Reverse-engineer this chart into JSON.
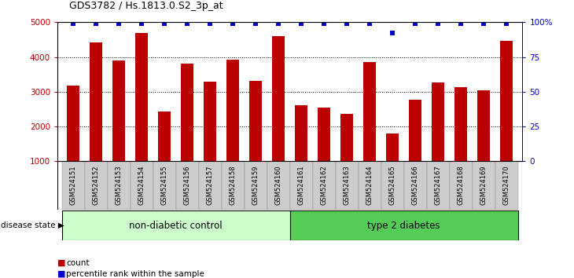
{
  "title": "GDS3782 / Hs.1813.0.S2_3p_at",
  "samples": [
    "GSM524151",
    "GSM524152",
    "GSM524153",
    "GSM524154",
    "GSM524155",
    "GSM524156",
    "GSM524157",
    "GSM524158",
    "GSM524159",
    "GSM524160",
    "GSM524161",
    "GSM524162",
    "GSM524163",
    "GSM524164",
    "GSM524165",
    "GSM524166",
    "GSM524167",
    "GSM524168",
    "GSM524169",
    "GSM524170"
  ],
  "counts": [
    3180,
    4430,
    3890,
    4700,
    2430,
    3820,
    3280,
    3930,
    3310,
    4590,
    2610,
    2540,
    2370,
    3860,
    1800,
    2780,
    3260,
    3130,
    3040,
    4470
  ],
  "percentile": [
    99,
    99,
    99,
    99,
    99,
    99,
    99,
    99,
    99,
    99,
    99,
    99,
    99,
    99,
    92,
    99,
    99,
    99,
    99,
    99
  ],
  "group1_label": "non-diabetic control",
  "group2_label": "type 2 diabetes",
  "group1_count": 10,
  "group2_count": 10,
  "ylim_left": [
    1000,
    5000
  ],
  "ylim_right": [
    0,
    100
  ],
  "yticks_left": [
    1000,
    2000,
    3000,
    4000,
    5000
  ],
  "yticks_right": [
    0,
    25,
    50,
    75,
    100
  ],
  "ytick_labels_right": [
    "0",
    "25",
    "50",
    "75",
    "100%"
  ],
  "bar_color": "#bb0000",
  "dot_color": "#0000cc",
  "grid_color": "#000000",
  "bg_color": "#ffffff",
  "group1_bg": "#ccffcc",
  "group2_bg": "#55cc55",
  "xticklabel_bg": "#cccccc",
  "bar_width": 0.55,
  "legend_count_label": "count",
  "legend_pct_label": "percentile rank within the sample"
}
